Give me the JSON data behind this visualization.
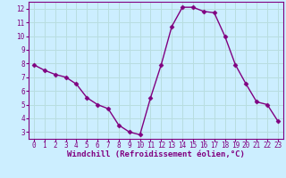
{
  "x": [
    0,
    1,
    2,
    3,
    4,
    5,
    6,
    7,
    8,
    9,
    10,
    11,
    12,
    13,
    14,
    15,
    16,
    17,
    18,
    19,
    20,
    21,
    22,
    23
  ],
  "y": [
    7.9,
    7.5,
    7.2,
    7.0,
    6.5,
    5.5,
    5.0,
    4.7,
    3.5,
    3.0,
    2.8,
    5.5,
    7.9,
    10.7,
    12.1,
    12.1,
    11.8,
    11.7,
    10.0,
    7.9,
    6.5,
    5.2,
    5.0,
    3.8
  ],
  "line_color": "#800080",
  "marker": "D",
  "marker_size": 2.5,
  "bg_color": "#cceeff",
  "grid_color": "#b8dde0",
  "xlabel": "Windchill (Refroidissement éolien,°C)",
  "xlim": [
    -0.5,
    23.5
  ],
  "ylim": [
    2.5,
    12.5
  ],
  "yticks": [
    3,
    4,
    5,
    6,
    7,
    8,
    9,
    10,
    11,
    12
  ],
  "xticks": [
    0,
    1,
    2,
    3,
    4,
    5,
    6,
    7,
    8,
    9,
    10,
    11,
    12,
    13,
    14,
    15,
    16,
    17,
    18,
    19,
    20,
    21,
    22,
    23
  ],
  "tick_color": "#800080",
  "label_color": "#800080",
  "label_fontsize": 6.5,
  "tick_fontsize": 5.5,
  "spine_color": "#800080",
  "linewidth": 1.0
}
